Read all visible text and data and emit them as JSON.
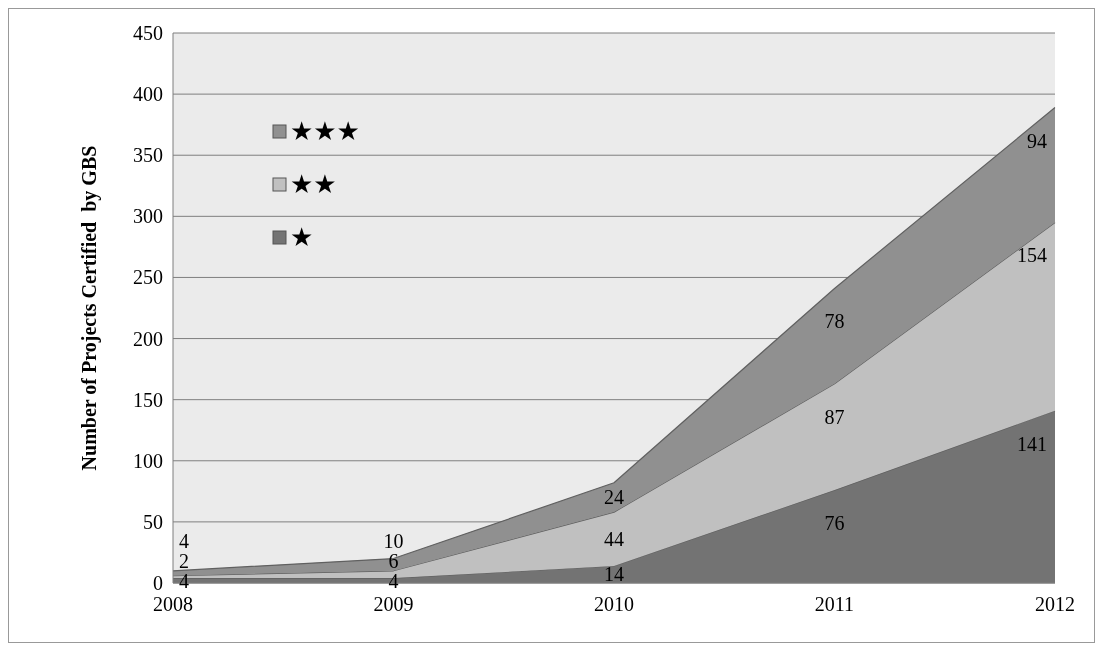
{
  "chart_data": {
    "type": "area",
    "stacked": true,
    "ylabel": "Number of Projects Certified  by GBS",
    "categories": [
      "2008",
      "2009",
      "2010",
      "2011",
      "2012"
    ],
    "ylim": [
      0,
      450
    ],
    "yticks": [
      0,
      50,
      100,
      150,
      200,
      250,
      300,
      350,
      400,
      450
    ],
    "grid": "y",
    "legend": "top left",
    "data_labels": true,
    "series": [
      {
        "name": "★",
        "color": "#737373",
        "values": [
          4,
          4,
          14,
          76,
          141
        ]
      },
      {
        "name": "★★",
        "color": "#c0c0c0",
        "values": [
          2,
          6,
          44,
          87,
          154
        ]
      },
      {
        "name": "★★★",
        "color": "#909090",
        "values": [
          4,
          10,
          24,
          78,
          94
        ]
      }
    ]
  }
}
